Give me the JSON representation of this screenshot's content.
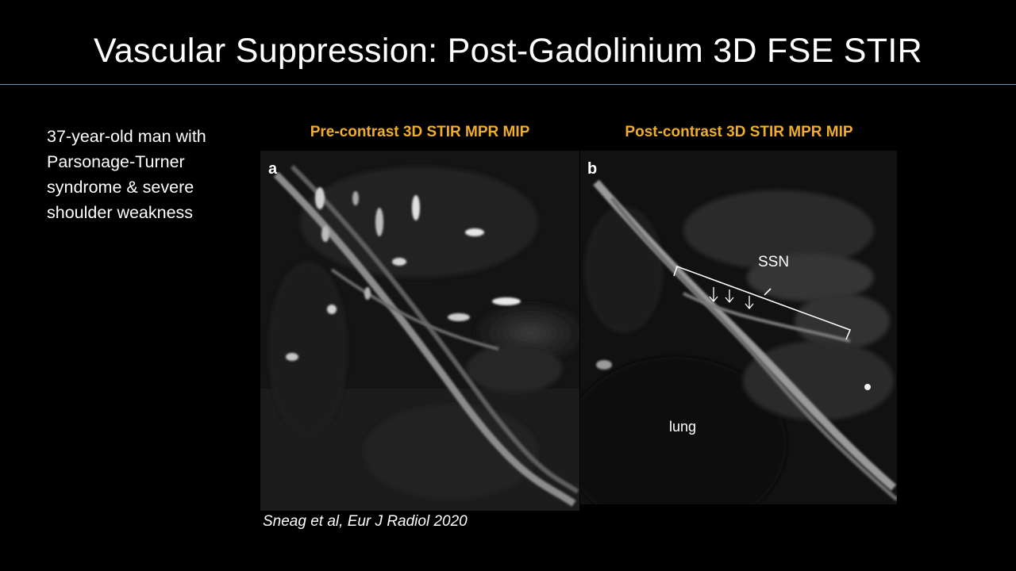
{
  "slide": {
    "title": "Vascular Suppression: Post-Gadolinium 3D FSE STIR",
    "case_description": "37-year-old man with Parsonage-Turner syndrome & severe shoulder weakness",
    "citation": "Sneag et al, Eur J Radiol 2020"
  },
  "panels": {
    "pre": {
      "caption": "Pre-contrast 3D STIR MPR MIP",
      "letter": "a"
    },
    "post": {
      "caption": "Post-contrast 3D STIR MPR MIP",
      "letter": "b",
      "label_ssn": "SSN",
      "label_lung": "lung"
    }
  },
  "colors": {
    "background": "#000000",
    "caption": "#f0ad2c",
    "title_rule": "#6f8fb6"
  }
}
